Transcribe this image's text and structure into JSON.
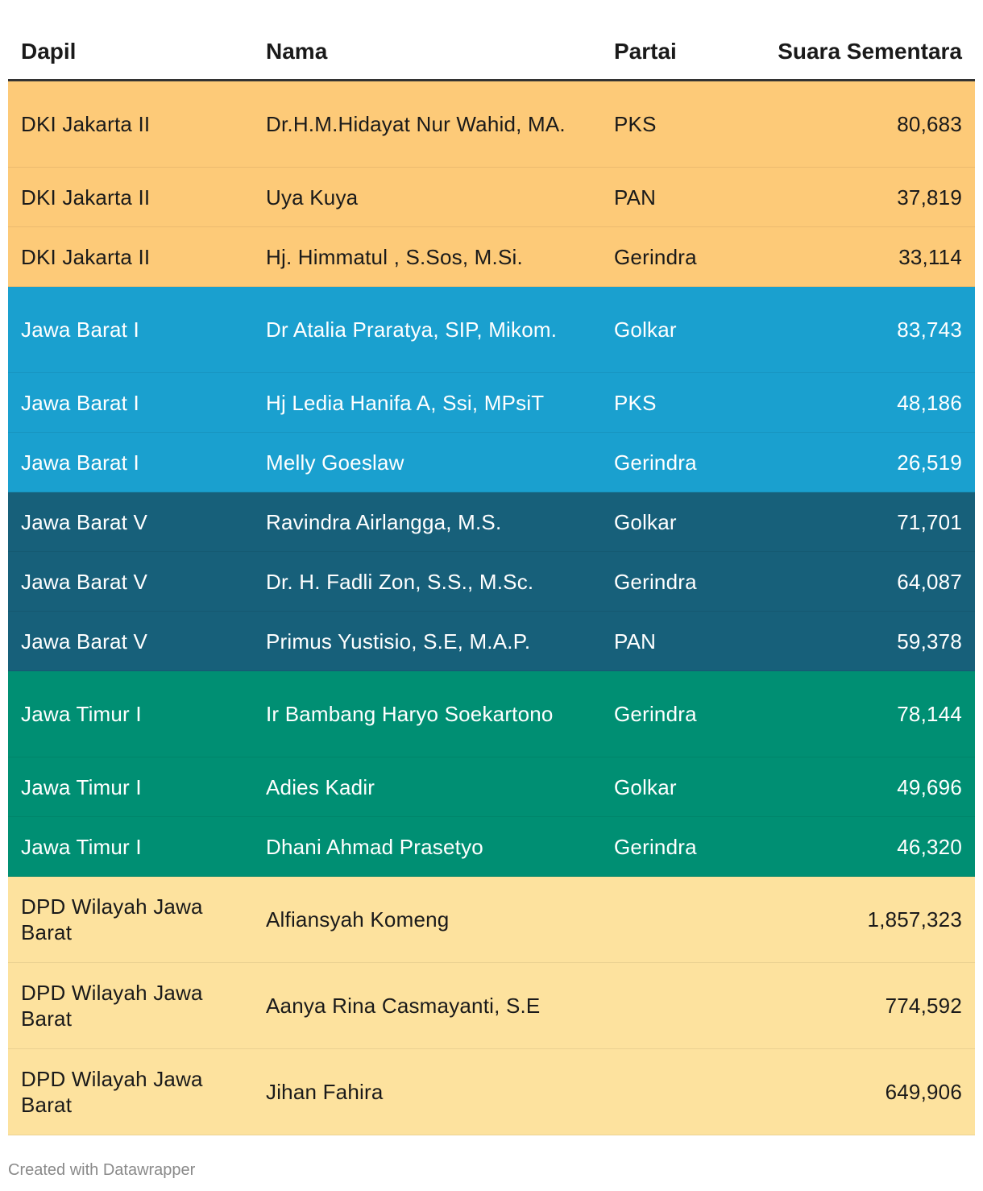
{
  "chart_data": {
    "type": "table",
    "columns": [
      "Dapil",
      "Nama",
      "Partai",
      "Suara Sementara"
    ],
    "rows": [
      {
        "dapil": "DKI Jakarta II",
        "nama": "Dr.H.M.Hidayat Nur Wahid, MA.",
        "partai": "PKS",
        "suara": "80,683",
        "bg": "#fdca78",
        "fg": "#1a1a1a",
        "tall": true
      },
      {
        "dapil": "DKI Jakarta II",
        "nama": "Uya Kuya",
        "partai": "PAN",
        "suara": "37,819",
        "bg": "#fdca78",
        "fg": "#1a1a1a",
        "tall": false
      },
      {
        "dapil": "DKI Jakarta II",
        "nama": "Hj. Himmatul , S.Sos, M.Si.",
        "partai": "Gerindra",
        "suara": "33,114",
        "bg": "#fdca78",
        "fg": "#1a1a1a",
        "tall": false
      },
      {
        "dapil": "Jawa Barat I",
        "nama": "Dr Atalia Praratya, SIP, Mikom.",
        "partai": "Golkar",
        "suara": "83,743",
        "bg": "#1aa0cf",
        "fg": "#ffffff",
        "tall": true
      },
      {
        "dapil": "Jawa Barat I",
        "nama": "Hj Ledia Hanifa A, Ssi, MPsiT",
        "partai": "PKS",
        "suara": "48,186",
        "bg": "#1aa0cf",
        "fg": "#ffffff",
        "tall": false
      },
      {
        "dapil": "Jawa Barat I",
        "nama": "Melly Goeslaw",
        "partai": "Gerindra",
        "suara": "26,519",
        "bg": "#1aa0cf",
        "fg": "#ffffff",
        "tall": false
      },
      {
        "dapil": "Jawa Barat V",
        "nama": "Ravindra Airlangga, M.S.",
        "partai": "Golkar",
        "suara": "71,701",
        "bg": "#17607a",
        "fg": "#ffffff",
        "tall": false
      },
      {
        "dapil": "Jawa Barat V",
        "nama": "Dr. H. Fadli Zon, S.S., M.Sc.",
        "partai": "Gerindra",
        "suara": "64,087",
        "bg": "#17607a",
        "fg": "#ffffff",
        "tall": false
      },
      {
        "dapil": "Jawa Barat V",
        "nama": "Primus Yustisio, S.E, M.A.P.",
        "partai": "PAN",
        "suara": "59,378",
        "bg": "#17607a",
        "fg": "#ffffff",
        "tall": false
      },
      {
        "dapil": "Jawa Timur I",
        "nama": "Ir Bambang Haryo Soekartono",
        "partai": "Gerindra",
        "suara": "78,144",
        "bg": "#008f73",
        "fg": "#ffffff",
        "tall": true
      },
      {
        "dapil": "Jawa Timur I",
        "nama": "Adies Kadir",
        "partai": "Golkar",
        "suara": "49,696",
        "bg": "#008f73",
        "fg": "#ffffff",
        "tall": false
      },
      {
        "dapil": "Jawa Timur I",
        "nama": "Dhani Ahmad Prasetyo",
        "partai": "Gerindra",
        "suara": "46,320",
        "bg": "#008f73",
        "fg": "#ffffff",
        "tall": false
      },
      {
        "dapil": "DPD Wilayah Jawa Barat",
        "nama": "Alfiansyah Komeng",
        "partai": "",
        "suara": "1,857,323",
        "bg": "#fde29e",
        "fg": "#1a1a1a",
        "tall": true
      },
      {
        "dapil": "DPD Wilayah Jawa Barat",
        "nama": "Aanya Rina Casmayanti, S.E",
        "partai": "",
        "suara": "774,592",
        "bg": "#fde29e",
        "fg": "#1a1a1a",
        "tall": true
      },
      {
        "dapil": "DPD Wilayah Jawa Barat",
        "nama": "Jihan Fahira",
        "partai": "",
        "suara": "649,906",
        "bg": "#fde29e",
        "fg": "#1a1a1a",
        "tall": true
      }
    ]
  },
  "footer": "Created with Datawrapper"
}
